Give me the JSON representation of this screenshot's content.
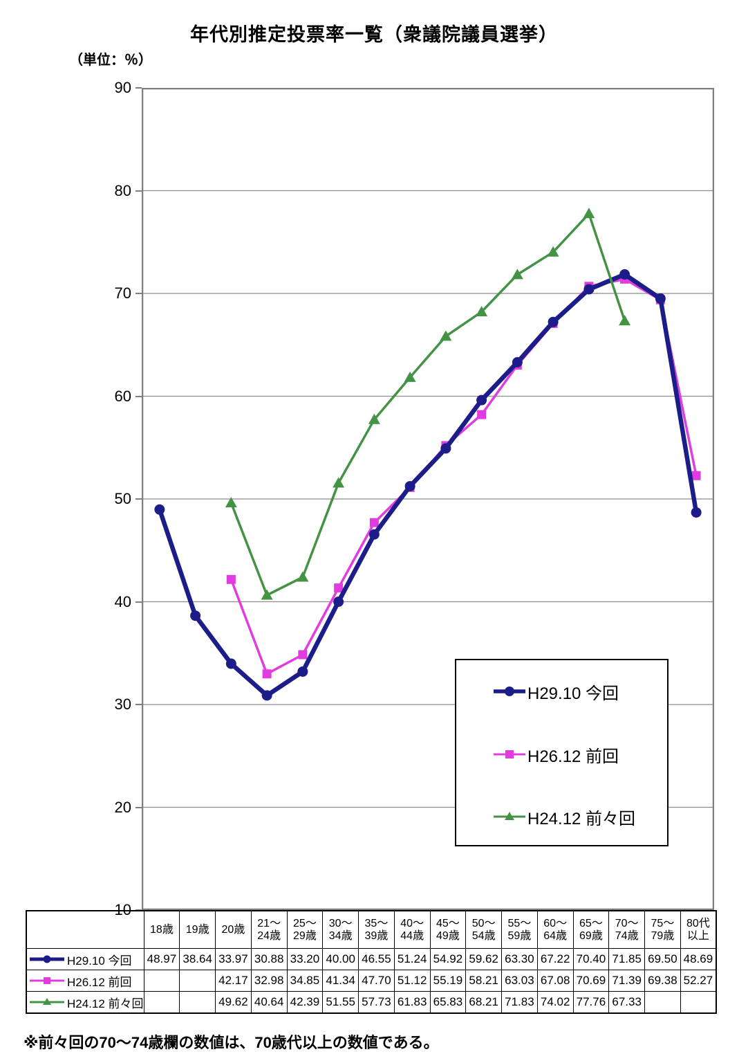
{
  "title": "年代別推定投票率一覧（衆議院議員選挙）",
  "unit_label": "（単位：％）",
  "footnote": "※前々回の70～74歳欄の数値は、70歳代以上の数値である。",
  "colors": {
    "series_now": "#1d1d8a",
    "series_prev": "#e03ce0",
    "series_prev2": "#449344",
    "grid": "#8c8c8c",
    "plot_border": "#7f7f7f",
    "table_border": "#000000"
  },
  "chart_data": {
    "type": "line",
    "title": "年代別推定投票率一覧（衆議院議員選挙）",
    "ylabel": "（単位：％）",
    "ylim": [
      10,
      90
    ],
    "yticks": [
      90,
      80,
      70,
      60,
      50,
      40,
      30,
      20,
      10
    ],
    "grid": true,
    "legend_position": "inside-lower-right",
    "categories": [
      "18歳",
      "19歳",
      "20歳",
      "21～24歳",
      "25～29歳",
      "30～34歳",
      "35～39歳",
      "40～44歳",
      "45～49歳",
      "50～54歳",
      "55～59歳",
      "60～64歳",
      "65～69歳",
      "70～74歳",
      "75～79歳",
      "80代以上"
    ],
    "series": [
      {
        "name": "H29.10 今回",
        "marker": "circle",
        "color": "#1d1d8a",
        "values": [
          48.97,
          38.64,
          33.97,
          30.88,
          33.2,
          40.0,
          46.55,
          51.24,
          54.92,
          59.62,
          63.3,
          67.22,
          70.4,
          71.85,
          69.5,
          48.69
        ]
      },
      {
        "name": "H26.12 前回",
        "marker": "square",
        "color": "#e03ce0",
        "values": [
          null,
          null,
          42.17,
          32.98,
          34.85,
          41.34,
          47.7,
          51.12,
          55.19,
          58.21,
          63.03,
          67.08,
          70.69,
          71.39,
          69.38,
          52.27
        ]
      },
      {
        "name": "H24.12 前々回",
        "marker": "triangle",
        "color": "#449344",
        "values": [
          null,
          null,
          49.62,
          40.64,
          42.39,
          51.55,
          57.73,
          61.83,
          65.83,
          68.21,
          71.83,
          74.02,
          77.76,
          67.33,
          null,
          null
        ]
      }
    ]
  }
}
